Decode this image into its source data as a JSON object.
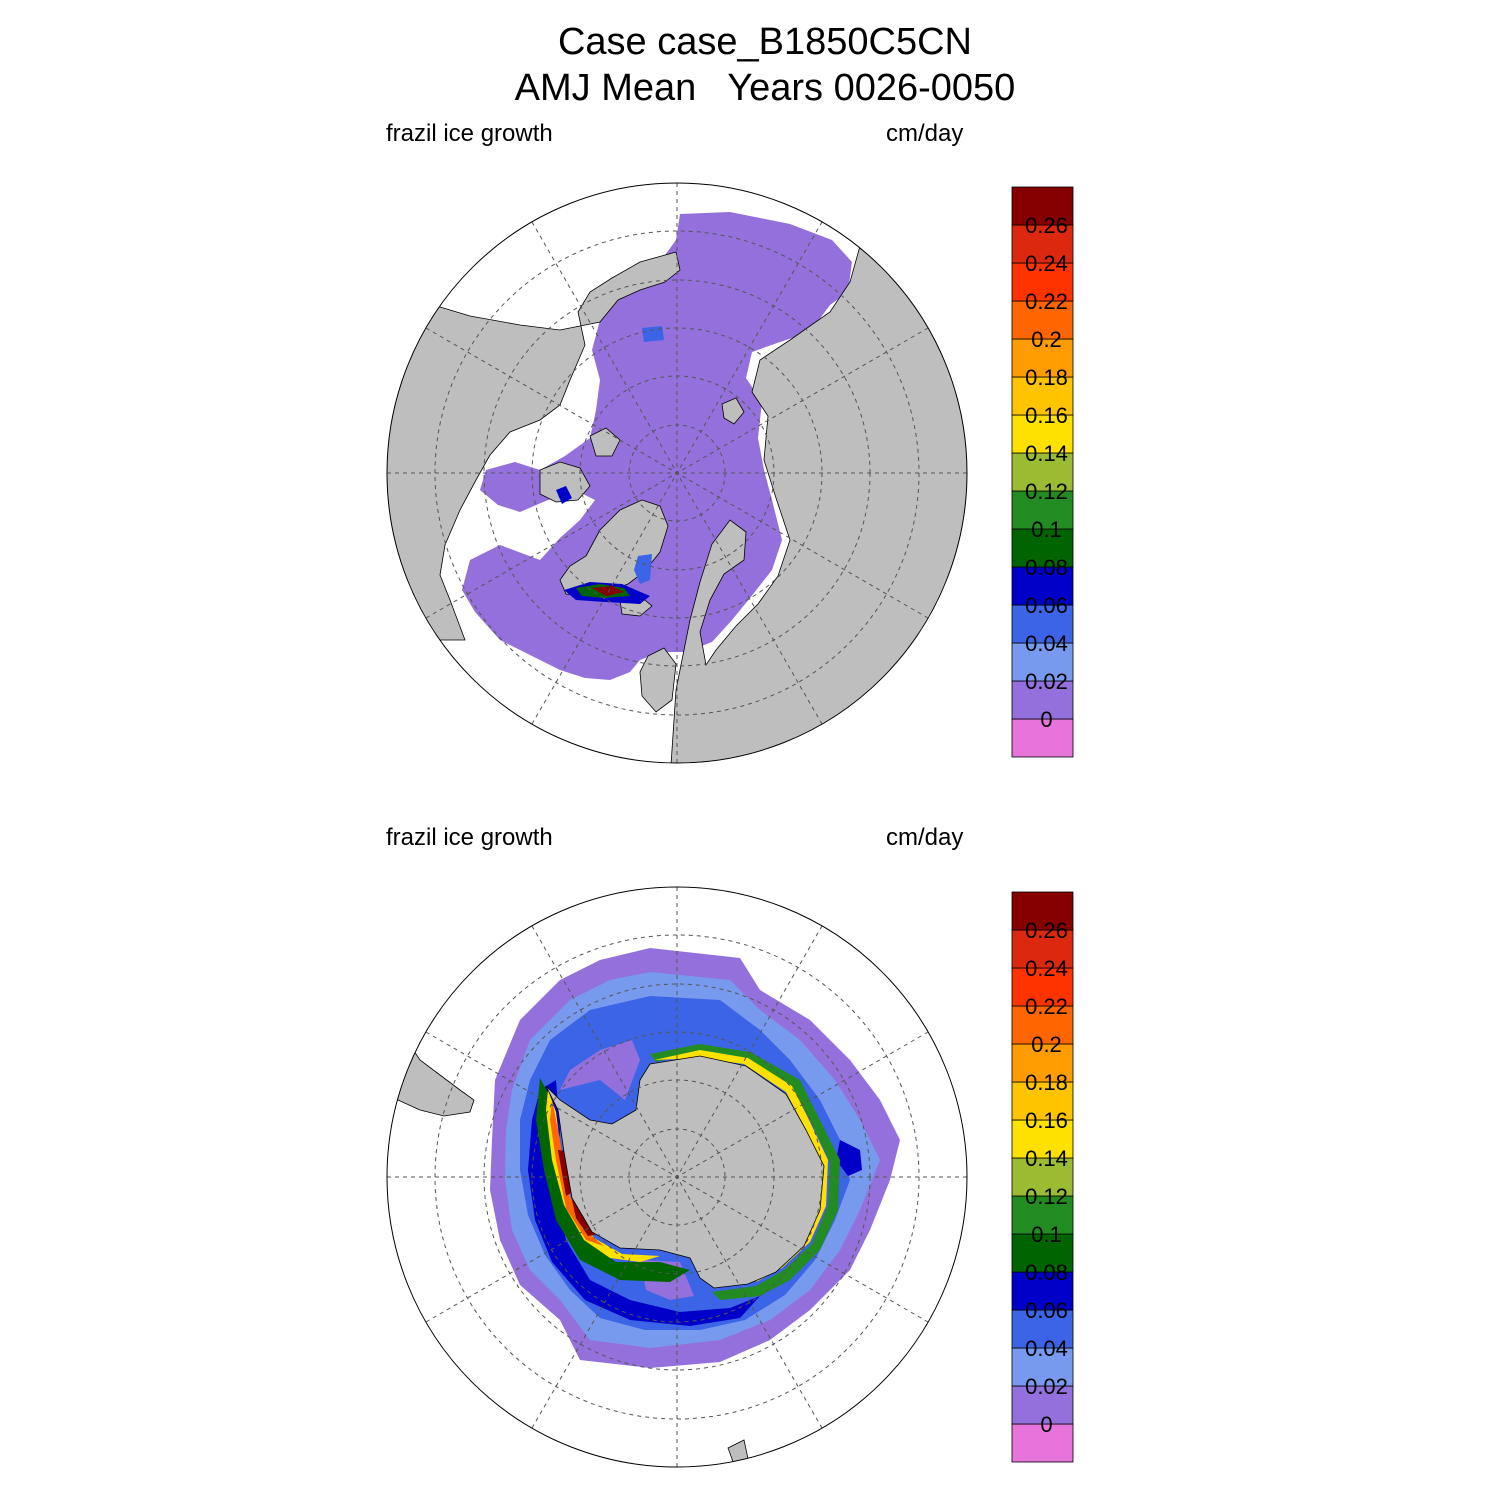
{
  "title": {
    "line1": "Case case_B1850C5CN",
    "line2": "AMJ Mean   Years 0026-0050"
  },
  "panels": [
    {
      "hemisphere": "north",
      "left_label": "frazil ice growth",
      "right_label": "cm/day"
    },
    {
      "hemisphere": "south",
      "left_label": "frazil ice growth",
      "right_label": "cm/day"
    }
  ],
  "colorbar": {
    "units": "cm/day",
    "levels": [
      "0",
      "0.02",
      "0.04",
      "0.06",
      "0.08",
      "0.1",
      "0.12",
      "0.14",
      "0.16",
      "0.18",
      "0.2",
      "0.22",
      "0.24",
      "0.26"
    ],
    "colors": [
      "#e674db",
      "#9370db",
      "#789aee",
      "#3c64e6",
      "#0000c8",
      "#006400",
      "#228b22",
      "#9abb32",
      "#ffe100",
      "#ffc400",
      "#ff9c00",
      "#ff6600",
      "#ff3300",
      "#dd2810",
      "#870000"
    ]
  },
  "map_colors": {
    "land": "#bebebe",
    "ocean_no_ice": "#ffffff",
    "grid": "#555555"
  }
}
